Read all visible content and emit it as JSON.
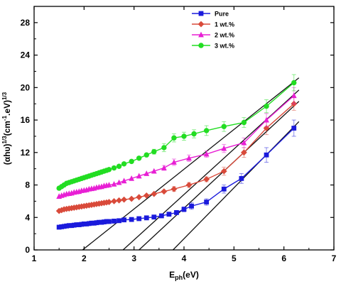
{
  "chart_data": {
    "type": "scatter",
    "xlim": [
      1,
      7
    ],
    "ylim": [
      0,
      30
    ],
    "x_ticks": [
      "1",
      "2",
      "3",
      "4",
      "5",
      "6",
      "7"
    ],
    "y_ticks": [
      "0",
      "4",
      "8",
      "12",
      "16",
      "20",
      "24",
      "28"
    ],
    "xlabel_main": "E",
    "xlabel_sub": "ph",
    "xlabel_rest": "(eV)",
    "ylabel_main": "(αhυ)",
    "ylabel_sup1": "1/3",
    "ylabel_mid": "(cm",
    "ylabel_sup2": "-1",
    "ylabel_mid2": ".eV)",
    "ylabel_sup3": "1/3",
    "legend_position": "top-right",
    "grid": false,
    "series": [
      {
        "name": "Pure",
        "color": "#1a1adc",
        "marker": "square",
        "x": [
          1.5,
          1.55,
          1.6,
          1.65,
          1.7,
          1.75,
          1.8,
          1.85,
          1.9,
          1.95,
          2.0,
          2.05,
          2.1,
          2.15,
          2.2,
          2.25,
          2.3,
          2.35,
          2.4,
          2.45,
          2.5,
          2.6,
          2.7,
          2.8,
          2.95,
          3.1,
          3.25,
          3.4,
          3.55,
          3.7,
          3.85,
          4.0,
          4.15,
          4.45,
          4.8,
          5.15,
          5.65,
          6.2
        ],
        "y": [
          2.8,
          2.85,
          2.9,
          2.95,
          3.0,
          3.0,
          3.05,
          3.1,
          3.1,
          3.15,
          3.2,
          3.2,
          3.25,
          3.3,
          3.3,
          3.35,
          3.4,
          3.4,
          3.45,
          3.5,
          3.5,
          3.55,
          3.6,
          3.7,
          3.75,
          3.85,
          3.95,
          4.05,
          4.2,
          4.4,
          4.6,
          5.0,
          5.4,
          5.9,
          7.5,
          8.8,
          11.7,
          15.0
        ],
        "err": [
          0,
          0,
          0,
          0,
          0,
          0,
          0,
          0,
          0,
          0,
          0,
          0,
          0,
          0,
          0,
          0,
          0,
          0,
          0,
          0,
          0,
          0,
          0,
          0,
          0,
          0,
          0,
          0,
          0,
          0,
          0,
          0.3,
          0.4,
          0.4,
          0.5,
          0.6,
          0.9,
          1.0
        ]
      },
      {
        "name": "1 wt.%",
        "color": "#d94a3a",
        "marker": "diamond",
        "x": [
          1.5,
          1.55,
          1.6,
          1.65,
          1.7,
          1.75,
          1.8,
          1.85,
          1.9,
          1.95,
          2.0,
          2.05,
          2.1,
          2.15,
          2.2,
          2.25,
          2.3,
          2.35,
          2.4,
          2.45,
          2.5,
          2.6,
          2.7,
          2.8,
          2.95,
          3.1,
          3.25,
          3.4,
          3.6,
          3.8,
          4.1,
          4.45,
          4.8,
          5.2,
          5.65,
          6.2
        ],
        "y": [
          4.8,
          4.9,
          5.0,
          5.05,
          5.1,
          5.15,
          5.2,
          5.25,
          5.3,
          5.35,
          5.4,
          5.45,
          5.5,
          5.55,
          5.6,
          5.65,
          5.7,
          5.75,
          5.8,
          5.85,
          5.9,
          6.0,
          6.1,
          6.2,
          6.3,
          6.5,
          6.7,
          6.9,
          7.2,
          7.5,
          8.0,
          8.7,
          9.7,
          12.0,
          15.0,
          18.0
        ],
        "err": [
          0,
          0,
          0,
          0,
          0,
          0,
          0,
          0,
          0,
          0,
          0,
          0,
          0,
          0,
          0,
          0,
          0,
          0,
          0,
          0,
          0,
          0,
          0,
          0,
          0,
          0,
          0,
          0,
          0,
          0.3,
          0.3,
          0.3,
          0.5,
          0.6,
          0.8,
          0.8
        ]
      },
      {
        "name": "2 wt.%",
        "color": "#e81fd4",
        "marker": "triangle",
        "x": [
          1.5,
          1.55,
          1.6,
          1.65,
          1.7,
          1.75,
          1.8,
          1.85,
          1.9,
          1.95,
          2.0,
          2.05,
          2.1,
          2.15,
          2.2,
          2.25,
          2.3,
          2.35,
          2.4,
          2.45,
          2.5,
          2.6,
          2.7,
          2.8,
          2.95,
          3.1,
          3.25,
          3.4,
          3.6,
          3.8,
          4.1,
          4.45,
          4.8,
          5.2,
          5.65,
          6.2
        ],
        "y": [
          6.6,
          6.7,
          6.8,
          6.9,
          6.95,
          7.0,
          7.1,
          7.15,
          7.2,
          7.3,
          7.35,
          7.4,
          7.5,
          7.55,
          7.6,
          7.7,
          7.75,
          7.8,
          7.9,
          7.95,
          8.0,
          8.1,
          8.3,
          8.5,
          8.8,
          9.1,
          9.4,
          9.7,
          10.1,
          10.8,
          11.3,
          11.8,
          12.5,
          13.2,
          16.0,
          19.0
        ],
        "err": [
          0,
          0,
          0,
          0,
          0,
          0,
          0,
          0,
          0,
          0,
          0,
          0,
          0,
          0,
          0,
          0,
          0,
          0,
          0,
          0,
          0,
          0,
          0,
          0,
          0,
          0,
          0,
          0,
          0.3,
          0.4,
          0.4,
          0.4,
          0.5,
          0.6,
          0.8,
          1.0
        ]
      },
      {
        "name": "3 wt.%",
        "color": "#22dd22",
        "marker": "circle",
        "x": [
          1.5,
          1.55,
          1.6,
          1.65,
          1.7,
          1.75,
          1.8,
          1.85,
          1.9,
          1.95,
          2.0,
          2.05,
          2.1,
          2.15,
          2.2,
          2.25,
          2.3,
          2.35,
          2.4,
          2.45,
          2.5,
          2.6,
          2.7,
          2.8,
          2.95,
          3.1,
          3.25,
          3.4,
          3.6,
          3.8,
          4.0,
          4.2,
          4.45,
          4.8,
          5.2,
          5.65,
          6.2
        ],
        "y": [
          7.6,
          7.8,
          8.0,
          8.2,
          8.3,
          8.4,
          8.5,
          8.6,
          8.7,
          8.8,
          8.9,
          9.0,
          9.1,
          9.2,
          9.3,
          9.4,
          9.5,
          9.6,
          9.7,
          9.8,
          9.9,
          10.1,
          10.3,
          10.6,
          10.9,
          11.3,
          11.7,
          12.1,
          12.6,
          13.8,
          14.0,
          14.3,
          14.7,
          15.2,
          15.7,
          17.7,
          20.6
        ],
        "err": [
          0,
          0,
          0,
          0,
          0,
          0,
          0,
          0,
          0,
          0,
          0,
          0,
          0,
          0,
          0,
          0,
          0,
          0,
          0,
          0,
          0,
          0,
          0,
          0,
          0,
          0,
          0,
          0.3,
          0.5,
          0.5,
          0.5,
          0.5,
          0.6,
          0.6,
          0.6,
          0.8,
          1.0
        ]
      }
    ],
    "fit_lines": [
      {
        "x": [
          1.97,
          6.3
        ],
        "y": [
          0,
          21.2
        ]
      },
      {
        "x": [
          2.78,
          6.3
        ],
        "y": [
          0,
          19.7
        ]
      },
      {
        "x": [
          3.1,
          6.3
        ],
        "y": [
          0,
          18.3
        ]
      },
      {
        "x": [
          3.78,
          6.3
        ],
        "y": [
          0,
          15.8
        ]
      }
    ]
  }
}
